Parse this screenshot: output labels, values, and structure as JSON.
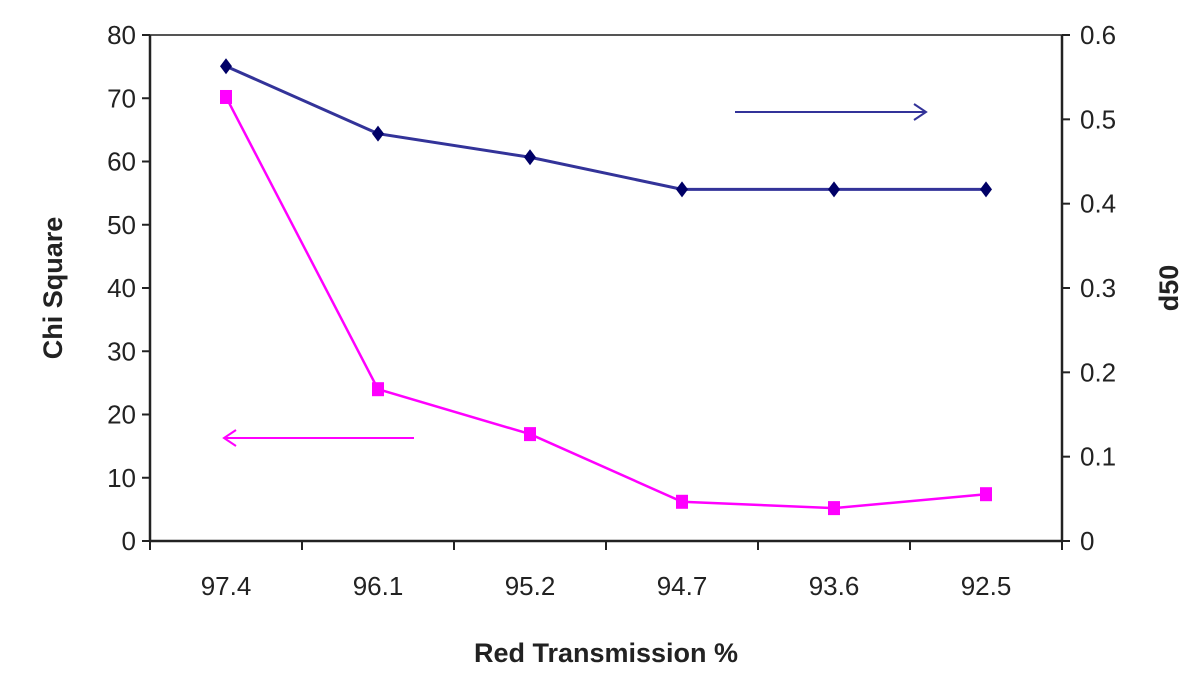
{
  "chart_data": {
    "type": "line",
    "title": "",
    "xlabel": "Red Transmission %",
    "ylabel": "Chi Square",
    "y2label": "d50",
    "categories": [
      "97.4",
      "96.1",
      "95.2",
      "94.7",
      "93.6",
      "92.5"
    ],
    "ylim": [
      0,
      80
    ],
    "yticks": [
      0,
      10,
      20,
      30,
      40,
      50,
      60,
      70,
      80
    ],
    "y2lim": [
      0,
      0.6
    ],
    "y2ticks": [
      "0",
      "0.1",
      "0.2",
      "0.3",
      "0.4",
      "0.5",
      "0.6"
    ],
    "grid": false,
    "legend": "none",
    "series": [
      {
        "name": "d50",
        "axis": "right",
        "color": "#000066",
        "line_color": "#333399",
        "marker": "diamond",
        "values": [
          0.563,
          0.483,
          0.455,
          0.417,
          0.417,
          0.417
        ]
      },
      {
        "name": "Chi Square",
        "axis": "left",
        "color": "#ff00ff",
        "line_color": "#ff00ff",
        "marker": "square",
        "values": [
          70.2,
          24.0,
          16.9,
          6.2,
          5.2,
          7.4
        ]
      }
    ],
    "annotations": [
      {
        "type": "arrow",
        "direction": "right",
        "series": "d50",
        "meaning": "right axis"
      },
      {
        "type": "arrow",
        "direction": "left",
        "series": "Chi Square",
        "meaning": "left axis"
      }
    ]
  }
}
